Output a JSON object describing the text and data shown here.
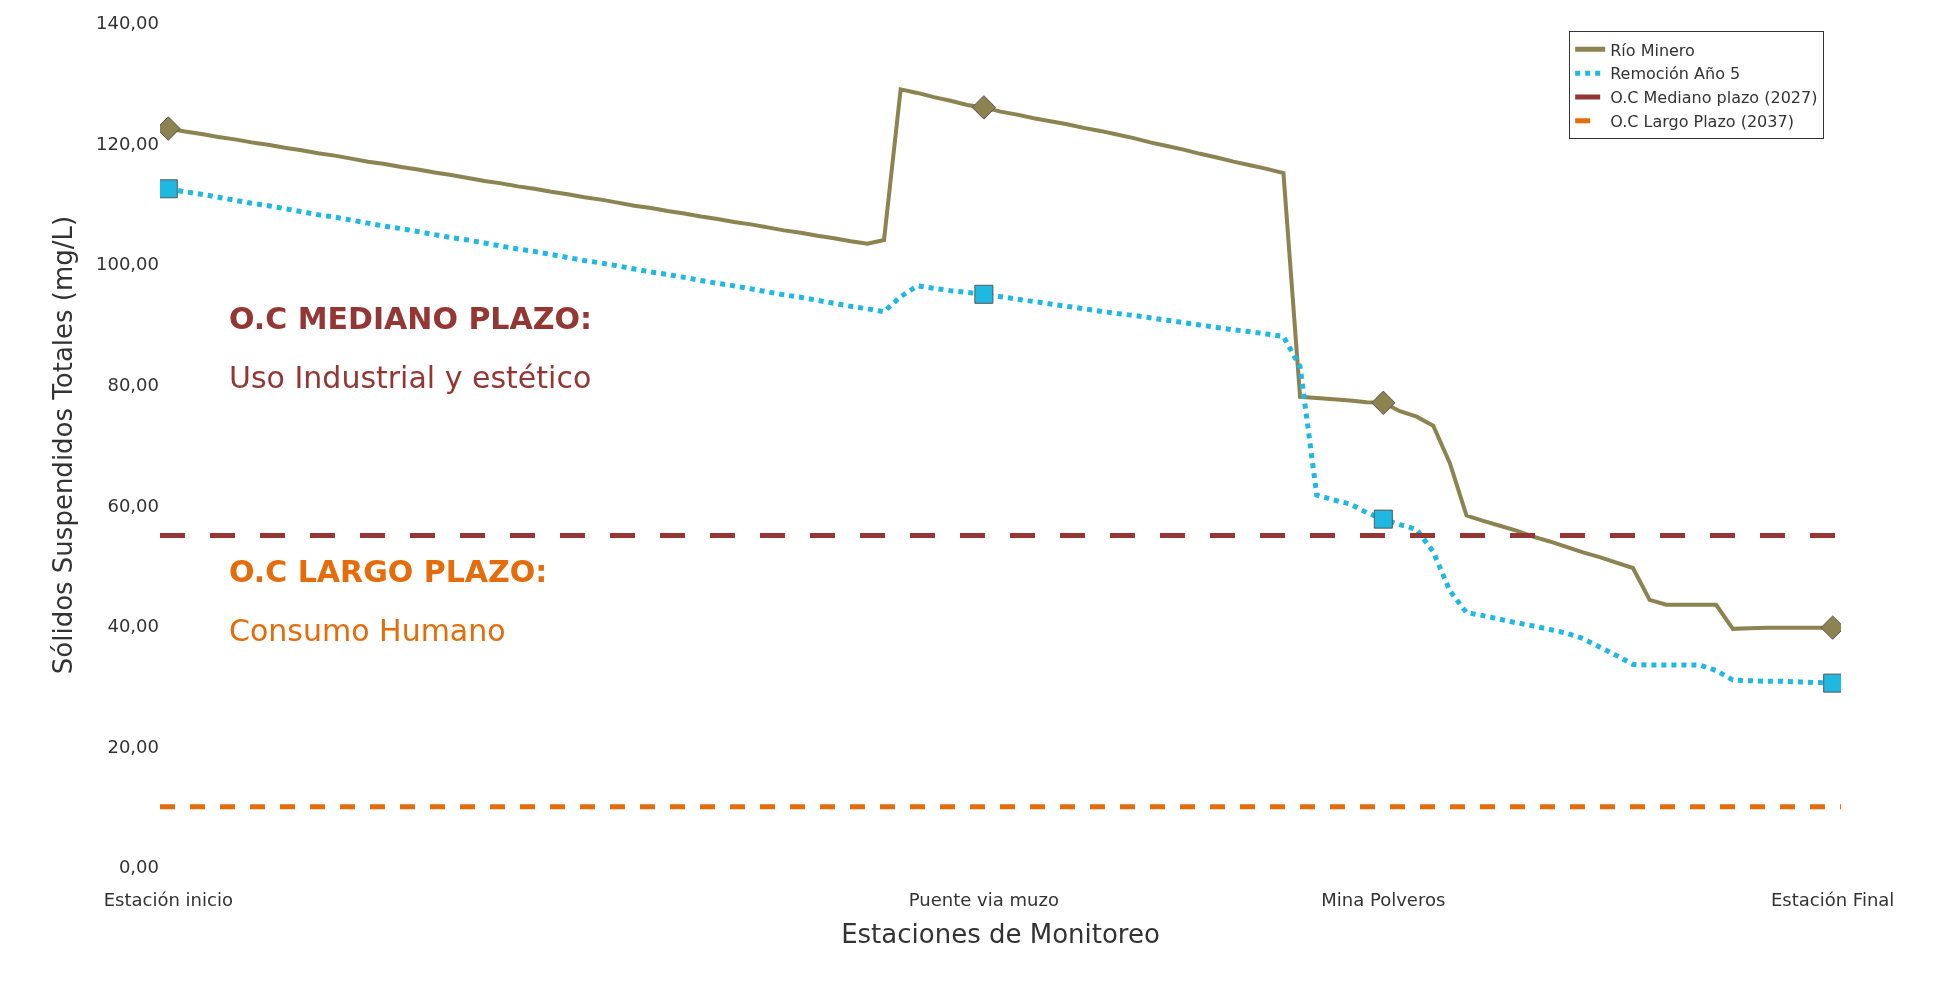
{
  "chart_data": {
    "type": "line",
    "xlabel": "Estaciones de Monitoreo",
    "ylabel": "Sólidos Suspendidos Totales (mg/L)",
    "categories": [
      "Estación inicio",
      null,
      null,
      null,
      null,
      null,
      null,
      null,
      null,
      null,
      null,
      null,
      null,
      null,
      null,
      null,
      null,
      null,
      null,
      null,
      null,
      null,
      null,
      null,
      null,
      null,
      null,
      null,
      null,
      null,
      null,
      null,
      null,
      null,
      null,
      null,
      null,
      null,
      null,
      null,
      null,
      null,
      null,
      null,
      null,
      null,
      null,
      null,
      null,
      "Puente via muzo",
      null,
      null,
      null,
      null,
      null,
      null,
      null,
      null,
      null,
      null,
      null,
      null,
      null,
      null,
      null,
      null,
      null,
      null,
      null,
      null,
      null,
      null,
      null,
      "Mina Polveros",
      null,
      null,
      null,
      null,
      null,
      null,
      null,
      null,
      null,
      null,
      null,
      null,
      null,
      null,
      null,
      null,
      null,
      null,
      null,
      null,
      null,
      null,
      null,
      null,
      null,
      null,
      "Estación Final"
    ],
    "ylim": [
      0,
      140
    ],
    "yticks": [
      {
        "value": 0,
        "label": "0,00"
      },
      {
        "value": 20,
        "label": "20,00"
      },
      {
        "value": 40,
        "label": "40,00"
      },
      {
        "value": 60,
        "label": "60,00"
      },
      {
        "value": 80,
        "label": "80,00"
      },
      {
        "value": 100,
        "label": "100,00"
      },
      {
        "value": 120,
        "label": "120,00"
      },
      {
        "value": 140,
        "label": "140,00"
      }
    ],
    "series": [
      {
        "type": "scatter",
        "color": "#8c8350",
        "marker": "diamond",
        "x": [
          "Estación inicio",
          "Puente via muzo",
          "Mina Polveros",
          "Estación Final"
        ],
        "values": [
          122.5,
          126.0,
          77.0,
          39.7
        ]
      },
      {
        "type": "scatter",
        "color": "#1fb8e0",
        "marker": "square",
        "x": [
          "Estación inicio",
          "Puente via muzo",
          "Mina Polveros",
          "Estación Final"
        ],
        "values": [
          112.5,
          95.0,
          57.7,
          30.5
        ]
      },
      {
        "name": "Río Minero",
        "color": "#8c8350",
        "line_style": "solid",
        "values": [
          122.5,
          122.0,
          121.6,
          121.1,
          120.7,
          120.2,
          119.8,
          119.3,
          118.9,
          118.4,
          118.0,
          117.5,
          117.0,
          116.6,
          116.1,
          115.7,
          115.2,
          114.8,
          114.3,
          113.8,
          113.4,
          112.9,
          112.5,
          112.0,
          111.6,
          111.1,
          110.7,
          110.2,
          109.7,
          109.3,
          108.8,
          108.4,
          107.9,
          107.5,
          107.0,
          106.6,
          106.1,
          105.6,
          105.2,
          104.7,
          104.3,
          103.8,
          103.4,
          104.0,
          129.0,
          128.4,
          127.7,
          127.1,
          126.4,
          126.0,
          125.3,
          124.8,
          124.2,
          123.7,
          123.2,
          122.6,
          122.1,
          121.5,
          120.9,
          120.2,
          119.6,
          119.0,
          118.3,
          117.7,
          117.0,
          116.4,
          115.8,
          115.1,
          78.0,
          77.8,
          77.6,
          77.4,
          77.1,
          77.0,
          75.6,
          74.7,
          73.2,
          67.0,
          58.3,
          57.4,
          56.6,
          55.8,
          54.8,
          54.0,
          53.1,
          52.2,
          51.4,
          50.5,
          49.6,
          44.3,
          43.5,
          43.5,
          43.5,
          43.5,
          39.5,
          39.6,
          39.7,
          39.7,
          39.7,
          39.7,
          39.7
        ]
      },
      {
        "name": "Remoción Año 5",
        "color": "#1fb8e0",
        "line_style": "dotted",
        "values": [
          112.5,
          112.0,
          111.6,
          111.1,
          110.6,
          110.1,
          109.7,
          109.2,
          108.7,
          108.2,
          107.8,
          107.3,
          106.8,
          106.3,
          105.9,
          105.4,
          104.9,
          104.4,
          104.0,
          103.5,
          103.0,
          102.5,
          102.1,
          101.6,
          101.1,
          100.6,
          100.2,
          99.7,
          99.2,
          98.7,
          98.3,
          97.8,
          97.3,
          96.8,
          96.4,
          95.9,
          95.4,
          94.9,
          94.5,
          94.0,
          93.5,
          93.0,
          92.6,
          92.1,
          94.6,
          96.4,
          96.0,
          95.6,
          95.3,
          95.0,
          94.6,
          94.2,
          93.8,
          93.4,
          93.0,
          92.6,
          92.2,
          91.8,
          91.5,
          91.1,
          90.7,
          90.3,
          89.9,
          89.5,
          89.1,
          88.8,
          88.4,
          88.0,
          83.0,
          61.7,
          60.9,
          60.2,
          58.8,
          57.7,
          56.8,
          56.0,
          52.3,
          45.8,
          42.2,
          41.7,
          41.1,
          40.5,
          40.0,
          39.4,
          38.8,
          37.9,
          36.5,
          35.1,
          33.6,
          33.5,
          33.5,
          33.5,
          33.5,
          32.6,
          31.0,
          30.9,
          30.8,
          30.8,
          30.7,
          30.6,
          30.5
        ]
      }
    ],
    "ref_lines": [
      {
        "axis": "y",
        "value": 55,
        "label": "O.C Mediano plazo (2027)",
        "color": "#943634",
        "line_style": "dashed"
      },
      {
        "axis": "y",
        "value": 10,
        "label": "O.C Largo Plazo (2037)",
        "color": "#e46c0a",
        "line_style": "dashed"
      }
    ],
    "annotations": [
      "O.C MEDIANO PLAZO:",
      "Uso Industrial y estético",
      "O.C LARGO PLAZO:",
      "Consumo Humano"
    ],
    "legend": "top right"
  }
}
